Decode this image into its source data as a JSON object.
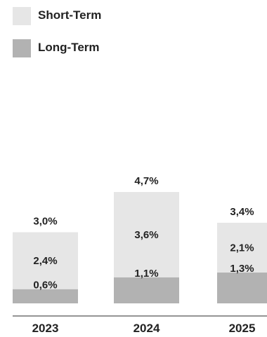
{
  "chart_data": {
    "type": "bar",
    "stacked": true,
    "categories": [
      "2023",
      "2024",
      "2025"
    ],
    "series": [
      {
        "name": "Long-Term",
        "values": [
          0.6,
          1.1,
          1.3
        ],
        "labels": [
          "0,6%",
          "1,1%",
          "1,3%"
        ],
        "color": "#b2b2b2"
      },
      {
        "name": "Short-Term",
        "values": [
          2.4,
          3.6,
          2.1
        ],
        "labels": [
          "2,4%",
          "3,6%",
          "2,1%"
        ],
        "color": "#e6e6e6"
      }
    ],
    "totals": [
      3.0,
      4.7,
      3.4
    ],
    "total_labels": [
      "3,0%",
      "4,7%",
      "3,4%"
    ],
    "legend_position": "top-left",
    "grid": false,
    "ylim": [
      0,
      4.7
    ]
  },
  "legend": [
    {
      "label": "Short-Term",
      "color": "#e6e6e6"
    },
    {
      "label": "Long-Term",
      "color": "#b2b2b2"
    }
  ],
  "colors": {
    "axis": "#555555",
    "text": "#222222"
  }
}
